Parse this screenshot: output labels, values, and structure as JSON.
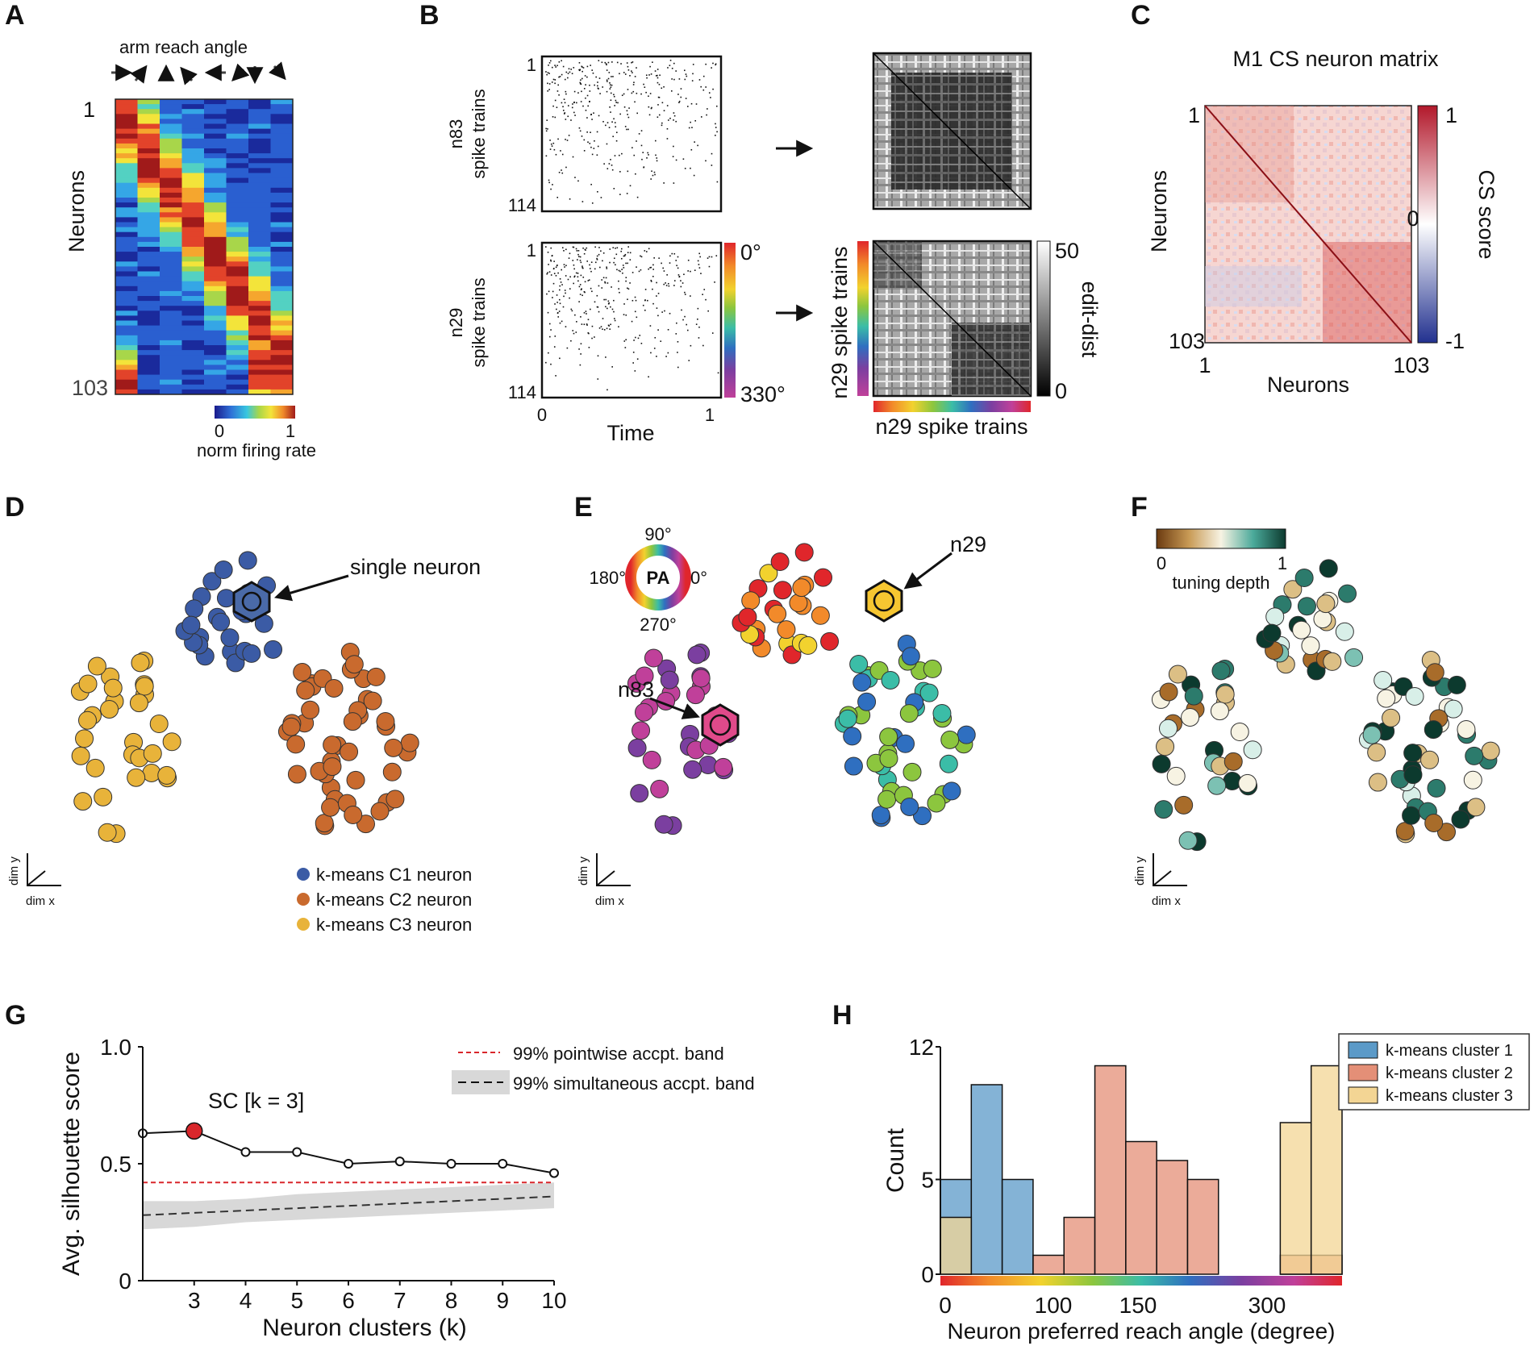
{
  "panels": {
    "A": {
      "letter": "A",
      "title": "arm reach angle",
      "ylabel": "Neurons",
      "top_tick": "1",
      "bottom_tick": "103",
      "cbar_min": "0",
      "cbar_max": "1",
      "cbar_label": "norm firing rate"
    },
    "B": {
      "letter": "B",
      "raster_top_ylabel1": "n83",
      "raster_top_ylabel2": "spike trains",
      "raster_bottom_ylabel1": "n29",
      "raster_bottom_ylabel2": "spike trains",
      "raster_tick_top": "1",
      "raster_tick_bottom": "114",
      "time_label": "Time",
      "time_min": "0",
      "time_max": "1",
      "angle_min": "0°",
      "angle_max": "330°",
      "dist_max": "50",
      "dist_min": "0",
      "dist_label": "edit-dist",
      "matrix_ylabel": "n29 spike trains",
      "matrix_xlabel": "n29 spike trains"
    },
    "C": {
      "letter": "C",
      "title": "M1 CS neuron matrix",
      "ylabel": "Neurons",
      "xlabel": "Neurons",
      "tick_1": "1",
      "tick_103": "103",
      "cbar_max": "1",
      "cbar_mid": "0",
      "cbar_min": "-1",
      "cbar_label": "CS score"
    },
    "D": {
      "letter": "D",
      "annotation": "single neuron",
      "axis_y": "dim y",
      "axis_x": "dim x",
      "legend": [
        "k-means C1 neuron",
        "k-means C2 neuron",
        "k-means C3 neuron"
      ]
    },
    "E": {
      "letter": "E",
      "wheel_center": "PA",
      "wheel_90": "90°",
      "wheel_180": "180°",
      "wheel_0": "0°",
      "wheel_270": "270°",
      "n29": "n29",
      "n83": "n83",
      "axis_y": "dim y",
      "axis_x": "dim x"
    },
    "F": {
      "letter": "F",
      "cbar_min": "0",
      "cbar_max": "1",
      "cbar_label": "tuning depth",
      "axis_y": "dim y",
      "axis_x": "dim x"
    },
    "G": {
      "letter": "G"
    },
    "H": {
      "letter": "H"
    }
  },
  "colors": {
    "c1": "#3b5ba5",
    "c2": "#c96a2e",
    "c3": "#e8b33a",
    "hist1": "#5b9ac8",
    "hist2": "#e48f77",
    "hist3": "#f3d594",
    "red": "#d9262b"
  },
  "chart_data": [
    {
      "id": "G",
      "type": "line",
      "title": "",
      "xlabel": "Neuron clusters (k)",
      "ylabel": "Avg. silhouette score",
      "x": [
        2,
        3,
        4,
        5,
        6,
        7,
        8,
        9,
        10
      ],
      "xticks": [
        "3",
        "4",
        "5",
        "6",
        "7",
        "8",
        "9",
        "10"
      ],
      "yticks": [
        "0",
        "0.5",
        "1.0"
      ],
      "ylim": [
        0,
        1
      ],
      "series": [
        {
          "name": "silhouette score",
          "values": [
            0.63,
            0.64,
            0.55,
            0.55,
            0.5,
            0.51,
            0.5,
            0.5,
            0.46
          ]
        },
        {
          "name": "99% pointwise accpt. band",
          "values": [
            0.42,
            0.42,
            0.42,
            0.42,
            0.42,
            0.42,
            0.42,
            0.42,
            0.42
          ]
        },
        {
          "name": "99% simultaneous accpt. band",
          "values": [
            0.28,
            0.29,
            0.3,
            0.31,
            0.32,
            0.33,
            0.34,
            0.35,
            0.36
          ]
        }
      ],
      "band_upper": [
        0.34,
        0.34,
        0.35,
        0.37,
        0.38,
        0.39,
        0.4,
        0.41,
        0.42
      ],
      "band_lower": [
        0.22,
        0.23,
        0.25,
        0.26,
        0.27,
        0.28,
        0.29,
        0.3,
        0.31
      ],
      "highlight": {
        "x": 3,
        "y": 0.64
      },
      "annotation": "SC [k = 3]",
      "legend": [
        "99% pointwise accpt. band",
        "99% simultaneous accpt. band"
      ]
    },
    {
      "id": "H",
      "type": "bar",
      "title": "",
      "xlabel": "Neuron preferred reach angle (degree)",
      "ylabel": "Count",
      "xticks": [
        "0",
        "100",
        "150",
        "300"
      ],
      "yticks": [
        "0",
        "5",
        "12"
      ],
      "ylim": [
        0,
        12
      ],
      "bin_edges": [
        0,
        25,
        50,
        75,
        100,
        125,
        150,
        175,
        200,
        225,
        250,
        275,
        300,
        325
      ],
      "series": [
        {
          "name": "k-means cluster 1",
          "values": [
            5,
            10,
            5,
            0,
            0,
            0,
            0,
            0,
            0,
            0,
            0,
            0,
            0
          ]
        },
        {
          "name": "k-means cluster 2",
          "values": [
            0,
            0,
            0,
            1,
            3,
            11,
            7,
            6,
            5,
            0,
            0,
            1,
            1
          ]
        },
        {
          "name": "k-means cluster 3",
          "values": [
            3,
            0,
            0,
            0,
            0,
            0,
            0,
            0,
            0,
            0,
            0,
            8,
            11
          ]
        }
      ],
      "legend": [
        "k-means cluster 1",
        "k-means cluster 2",
        "k-means cluster 3"
      ]
    }
  ]
}
